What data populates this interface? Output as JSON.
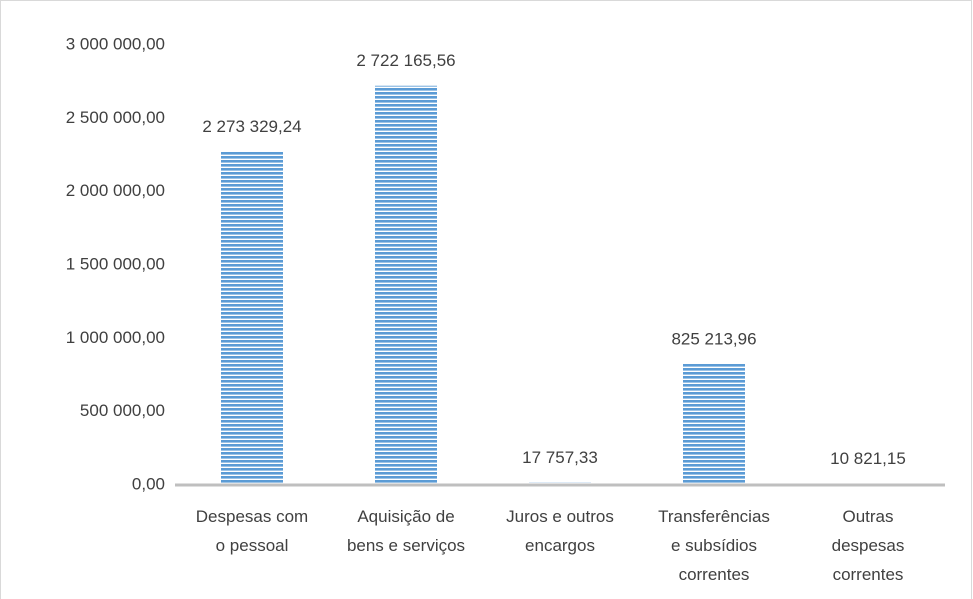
{
  "chart_data": {
    "type": "bar",
    "categories": [
      "Despesas com\no pessoal",
      "Aquisição de\nbens e serviços",
      "Juros e outros\nencargos",
      "Transferências\ne subsídios\ncorrentes",
      "Outras\ndespesas\ncorrentes"
    ],
    "values": [
      2273329.24,
      2722165.56,
      17757.33,
      825213.96,
      10821.15
    ],
    "value_labels": [
      "2 273 329,24",
      "2 722 165,56",
      "17 757,33",
      "825 213,96",
      "10 821,15"
    ],
    "color": "#5b9bd5",
    "ylim": [
      0,
      3000000
    ],
    "yticks": [
      {
        "value": 0,
        "label": "0,00"
      },
      {
        "value": 500000,
        "label": "500 000,00"
      },
      {
        "value": 1000000,
        "label": "1 000 000,00"
      },
      {
        "value": 1500000,
        "label": "1 500 000,00"
      },
      {
        "value": 2000000,
        "label": "2 000 000,00"
      },
      {
        "value": 2500000,
        "label": "2 500 000,00"
      },
      {
        "value": 3000000,
        "label": "3 000 000,00"
      }
    ],
    "grid": false
  }
}
